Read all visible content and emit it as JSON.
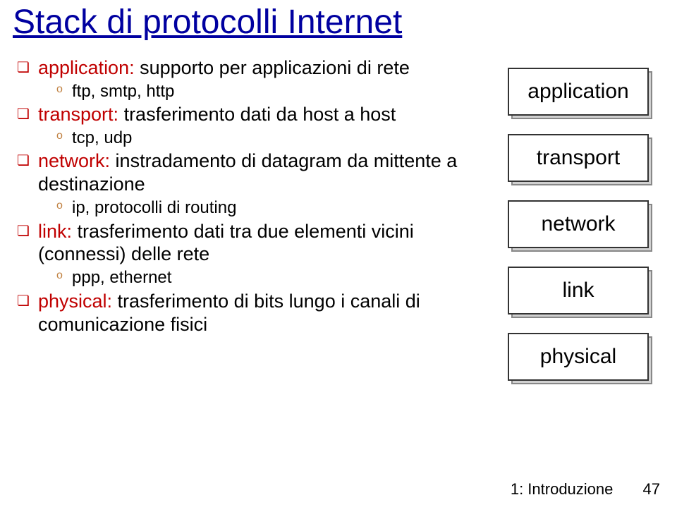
{
  "title": "Stack di protocolli Internet",
  "bullets": {
    "b1": {
      "label": "application:",
      "desc": " supporto per applicazioni di rete",
      "sub": "ftp, smtp, http"
    },
    "b2": {
      "label": "transport:",
      "desc": " trasferimento dati da host a host",
      "sub": "tcp, udp"
    },
    "b3": {
      "label": "network:",
      "desc": " instradamento di datagram da mittente a destinazione",
      "sub": "ip, protocolli di routing"
    },
    "b4": {
      "label": "link:",
      "desc": " trasferimento dati tra due elementi vicini (connessi) delle rete",
      "sub": "ppp, ethernet"
    },
    "b5": {
      "label": "physical:",
      "desc": " trasferimento di bits lungo i canali di comunicazione fisici"
    }
  },
  "stack": {
    "layers": [
      "application",
      "transport",
      "network",
      "link",
      "physical"
    ]
  },
  "footer": {
    "text": "1: Introduzione",
    "page": "47"
  },
  "colors": {
    "title": "#0000a0",
    "label": "#c00000",
    "bullet_sub": "#c08040",
    "text": "#000000",
    "shadow": "#d0d0d0",
    "border": "#333333",
    "bg": "#ffffff"
  }
}
